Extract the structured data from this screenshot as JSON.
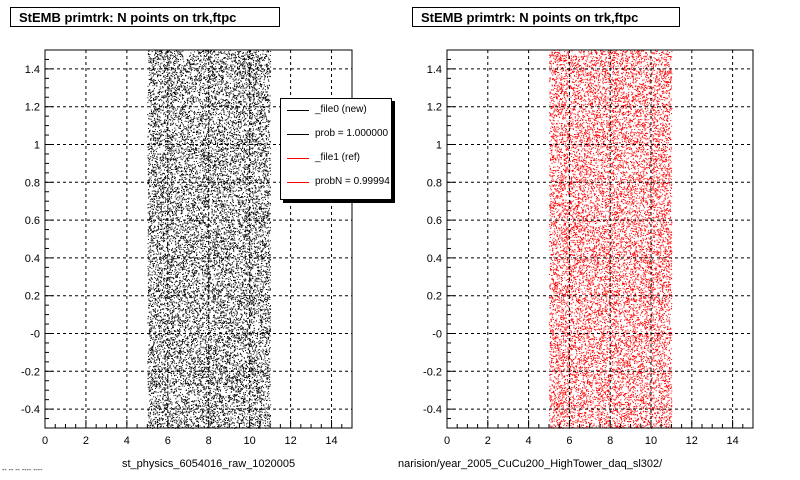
{
  "left_pad": {
    "title": "StEMB primtrk: N points on trk,ftpc",
    "bottom_label": "st_physics_6054016_raw_1020005",
    "legend": [
      {
        "label": "_file0 (new)",
        "color": "#000000"
      },
      {
        "label": "prob = 1.000000",
        "color": "#000000"
      },
      {
        "label": "_file1 (ref)",
        "color": "#ff0000"
      },
      {
        "label": "probN = 0.99994",
        "color": "#ff0000"
      }
    ]
  },
  "right_pad": {
    "title": "StEMB primtrk: N points on trk,ftpc",
    "bottom_label": "narision/year_2005_CuCu200_HighTower_daq_sl302/"
  },
  "footer_note": "-- -- -- ---- ----",
  "chart_data": [
    {
      "type": "scatter",
      "title": "StEMB primtrk: N points on trk,ftpc",
      "xlabel": "",
      "ylabel": "",
      "xlim": [
        0,
        15
      ],
      "ylim": [
        -0.5,
        1.5
      ],
      "x_ticks": [
        "0",
        "2",
        "4",
        "6",
        "8",
        "10",
        "12",
        "14"
      ],
      "y_ticks": [
        "-0.4",
        "-0.2",
        "-0",
        "0.2",
        "0.4",
        "0.6",
        "0.8",
        "1",
        "1.2",
        "1.4"
      ],
      "grid": true,
      "legend_position": "top-right",
      "series": [
        {
          "name": "_file0 (new)",
          "color": "#000000",
          "x_range": [
            5,
            11
          ],
          "y_range": [
            -0.5,
            1.5
          ],
          "fill": "dense uniform random dots"
        }
      ]
    },
    {
      "type": "scatter",
      "title": "StEMB primtrk: N points on trk,ftpc",
      "xlabel": "",
      "ylabel": "",
      "xlim": [
        0,
        15
      ],
      "ylim": [
        -0.5,
        1.5
      ],
      "x_ticks": [
        "0",
        "2",
        "4",
        "6",
        "8",
        "10",
        "12",
        "14"
      ],
      "y_ticks": [
        "-0.4",
        "-0.2",
        "-0",
        "0.2",
        "0.4",
        "0.6",
        "0.8",
        "1",
        "1.2",
        "1.4"
      ],
      "grid": true,
      "series": [
        {
          "name": "_file1 (ref)",
          "color": "#ff0000",
          "x_range": [
            5,
            11
          ],
          "y_range": [
            -0.5,
            1.5
          ],
          "fill": "dense uniform random dots"
        }
      ]
    }
  ]
}
